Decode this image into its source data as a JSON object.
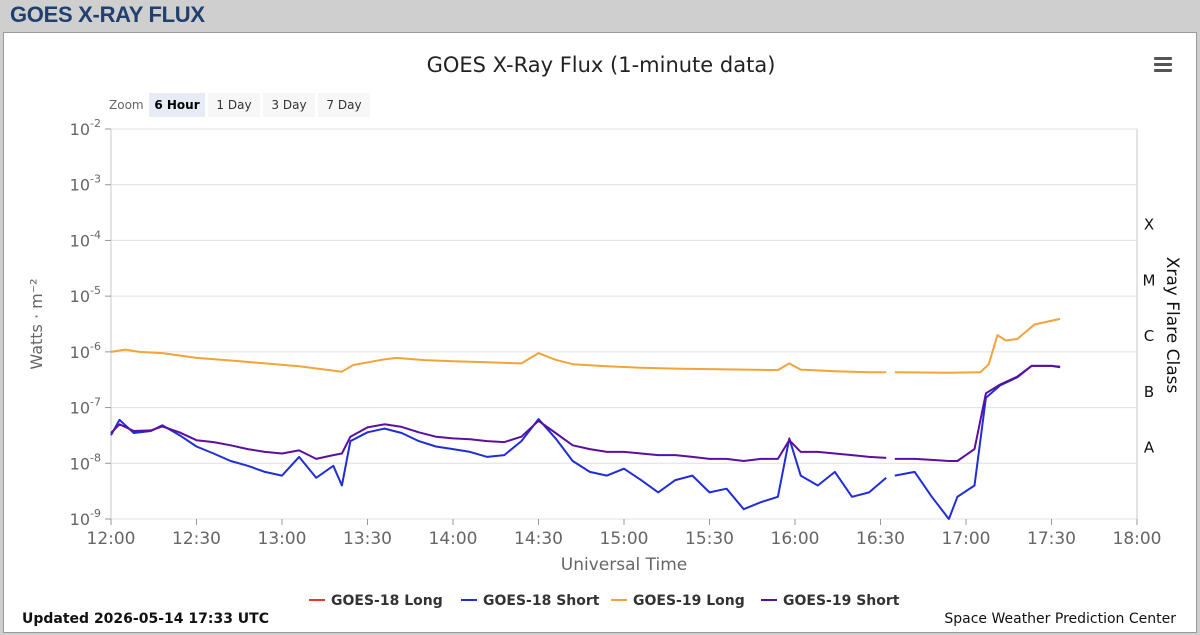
{
  "header": {
    "title": "GOES X-RAY FLUX"
  },
  "toolbar": {
    "zoom_label": "Zoom",
    "zoom_buttons": [
      "6 Hour",
      "1 Day",
      "3 Day",
      "7 Day"
    ],
    "active_zoom": "6 Hour"
  },
  "footer": {
    "updated": "Updated 2026-05-14 17:33 UTC",
    "credit": "Space Weather Prediction Center"
  },
  "colors": {
    "goes18_long": "#ee3524",
    "goes18_short": "#1f2ed6",
    "goes19_long": "#f2a33a",
    "goes19_short": "#5b0fa0"
  },
  "chart_data": {
    "type": "line",
    "title": "GOES X-Ray Flux (1-minute data)",
    "xlabel": "Universal Time",
    "ylabel": "Watts · m⁻²",
    "right_label": "Xray Flare Class",
    "y_scale": "log",
    "ylim": [
      1e-09,
      0.01
    ],
    "x_range_minutes": [
      0,
      360
    ],
    "x_ticks": [
      "12:00",
      "12:30",
      "13:00",
      "13:30",
      "14:00",
      "14:30",
      "15:00",
      "15:30",
      "16:00",
      "16:30",
      "17:00",
      "17:30",
      "18:00"
    ],
    "y_ticks": [
      {
        "mantissa": "10",
        "exp": "-9",
        "value": 1e-09
      },
      {
        "mantissa": "10",
        "exp": "-8",
        "value": 1e-08
      },
      {
        "mantissa": "10",
        "exp": "-7",
        "value": 1e-07
      },
      {
        "mantissa": "10",
        "exp": "-6",
        "value": 1e-06
      },
      {
        "mantissa": "10",
        "exp": "-5",
        "value": 1e-05
      },
      {
        "mantissa": "10",
        "exp": "-4",
        "value": 0.0001
      },
      {
        "mantissa": "10",
        "exp": "-3",
        "value": 0.001
      },
      {
        "mantissa": "10",
        "exp": "-2",
        "value": 0.01
      }
    ],
    "flare_classes": [
      {
        "label": "X",
        "value": 0.0002
      },
      {
        "label": "M",
        "value": 2e-05
      },
      {
        "label": "C",
        "value": 2e-06
      },
      {
        "label": "B",
        "value": 2e-07
      },
      {
        "label": "A",
        "value": 2e-08
      }
    ],
    "grid": true,
    "legend": "bottom",
    "series": [
      {
        "name": "GOES-18 Long",
        "color_key": "goes18_long",
        "points": []
      },
      {
        "name": "GOES-18 Short",
        "color_key": "goes18_short",
        "points": [
          [
            "12:00",
            3.2e-08
          ],
          [
            "12:03",
            6e-08
          ],
          [
            "12:08",
            3.5e-08
          ],
          [
            "12:14",
            3.8e-08
          ],
          [
            "12:18",
            4.8e-08
          ],
          [
            "12:24",
            3.2e-08
          ],
          [
            "12:30",
            2e-08
          ],
          [
            "12:36",
            1.5e-08
          ],
          [
            "12:42",
            1.1e-08
          ],
          [
            "12:48",
            9e-09
          ],
          [
            "12:54",
            7e-09
          ],
          [
            "13:00",
            6e-09
          ],
          [
            "13:06",
            1.3e-08
          ],
          [
            "13:12",
            5.5e-09
          ],
          [
            "13:18",
            9e-09
          ],
          [
            "13:21",
            4e-09
          ],
          [
            "13:24",
            2.5e-08
          ],
          [
            "13:30",
            3.6e-08
          ],
          [
            "13:36",
            4.2e-08
          ],
          [
            "13:42",
            3.5e-08
          ],
          [
            "13:48",
            2.5e-08
          ],
          [
            "13:54",
            2e-08
          ],
          [
            "14:00",
            1.8e-08
          ],
          [
            "14:06",
            1.6e-08
          ],
          [
            "14:12",
            1.3e-08
          ],
          [
            "14:18",
            1.4e-08
          ],
          [
            "14:24",
            2.5e-08
          ],
          [
            "14:30",
            6.2e-08
          ],
          [
            "14:36",
            2.8e-08
          ],
          [
            "14:42",
            1.1e-08
          ],
          [
            "14:48",
            7e-09
          ],
          [
            "14:54",
            6e-09
          ],
          [
            "15:00",
            8e-09
          ],
          [
            "15:06",
            5e-09
          ],
          [
            "15:12",
            3e-09
          ],
          [
            "15:18",
            5e-09
          ],
          [
            "15:24",
            6e-09
          ],
          [
            "15:30",
            3e-09
          ],
          [
            "15:36",
            3.5e-09
          ],
          [
            "15:42",
            1.5e-09
          ],
          [
            "15:48",
            2e-09
          ],
          [
            "15:54",
            2.5e-09
          ],
          [
            "15:58",
            2.8e-08
          ],
          [
            "16:02",
            6e-09
          ],
          [
            "16:08",
            4e-09
          ],
          [
            "16:14",
            7e-09
          ],
          [
            "16:20",
            2.5e-09
          ],
          [
            "16:26",
            3e-09
          ],
          [
            "16:32",
            5.5e-09
          ],
          [
            null,
            null
          ],
          [
            "16:35",
            6e-09
          ],
          [
            "16:42",
            7e-09
          ],
          [
            "16:48",
            2.5e-09
          ],
          [
            "16:54",
            1e-09
          ],
          [
            "16:57",
            2.5e-09
          ],
          [
            "17:03",
            4e-09
          ],
          [
            "17:07",
            1.5e-07
          ],
          [
            "17:12",
            2.5e-07
          ],
          [
            "17:18",
            3.5e-07
          ],
          [
            "17:23",
            5.6e-07
          ],
          [
            "17:30",
            5.6e-07
          ],
          [
            "17:33",
            5.4e-07
          ]
        ]
      },
      {
        "name": "GOES-19 Long",
        "color_key": "goes19_long",
        "points": [
          [
            "12:00",
            1e-06
          ],
          [
            "12:05",
            1.1e-06
          ],
          [
            "12:10",
            1e-06
          ],
          [
            "12:18",
            9.5e-07
          ],
          [
            "12:30",
            7.8e-07
          ],
          [
            "12:42",
            7e-07
          ],
          [
            "12:54",
            6.2e-07
          ],
          [
            "13:06",
            5.5e-07
          ],
          [
            "13:18",
            4.6e-07
          ],
          [
            "13:21",
            4.4e-07
          ],
          [
            "13:25",
            5.8e-07
          ],
          [
            "13:35",
            7.2e-07
          ],
          [
            "13:40",
            7.8e-07
          ],
          [
            "13:50",
            7.1e-07
          ],
          [
            "14:00",
            6.8e-07
          ],
          [
            "14:12",
            6.5e-07
          ],
          [
            "14:24",
            6.2e-07
          ],
          [
            "14:30",
            9.5e-07
          ],
          [
            "14:36",
            7.2e-07
          ],
          [
            "14:42",
            6e-07
          ],
          [
            "14:54",
            5.5e-07
          ],
          [
            "15:06",
            5.2e-07
          ],
          [
            "15:18",
            5e-07
          ],
          [
            "15:30",
            4.9e-07
          ],
          [
            "15:42",
            4.8e-07
          ],
          [
            "15:54",
            4.7e-07
          ],
          [
            "15:58",
            6.2e-07
          ],
          [
            "16:02",
            4.8e-07
          ],
          [
            "16:14",
            4.5e-07
          ],
          [
            "16:26",
            4.3e-07
          ],
          [
            "16:32",
            4.3e-07
          ],
          [
            null,
            null
          ],
          [
            "16:35",
            4.3e-07
          ],
          [
            "16:54",
            4.2e-07
          ],
          [
            "17:05",
            4.3e-07
          ],
          [
            "17:08",
            6e-07
          ],
          [
            "17:11",
            2e-06
          ],
          [
            "17:14",
            1.6e-06
          ],
          [
            "17:18",
            1.7e-06
          ],
          [
            "17:24",
            3.1e-06
          ],
          [
            "17:33",
            3.9e-06
          ]
        ]
      },
      {
        "name": "GOES-19 Short",
        "color_key": "goes19_short",
        "points": [
          [
            "12:00",
            3.5e-08
          ],
          [
            "12:03",
            5e-08
          ],
          [
            "12:08",
            3.8e-08
          ],
          [
            "12:14",
            3.9e-08
          ],
          [
            "12:18",
            4.6e-08
          ],
          [
            "12:24",
            3.6e-08
          ],
          [
            "12:30",
            2.6e-08
          ],
          [
            "12:36",
            2.4e-08
          ],
          [
            "12:42",
            2.1e-08
          ],
          [
            "12:48",
            1.8e-08
          ],
          [
            "12:54",
            1.6e-08
          ],
          [
            "13:00",
            1.5e-08
          ],
          [
            "13:06",
            1.7e-08
          ],
          [
            "13:12",
            1.2e-08
          ],
          [
            "13:18",
            1.4e-08
          ],
          [
            "13:21",
            1.5e-08
          ],
          [
            "13:24",
            3e-08
          ],
          [
            "13:30",
            4.4e-08
          ],
          [
            "13:36",
            5e-08
          ],
          [
            "13:42",
            4.5e-08
          ],
          [
            "13:48",
            3.6e-08
          ],
          [
            "13:54",
            3e-08
          ],
          [
            "14:00",
            2.8e-08
          ],
          [
            "14:06",
            2.7e-08
          ],
          [
            "14:12",
            2.5e-08
          ],
          [
            "14:18",
            2.4e-08
          ],
          [
            "14:24",
            3e-08
          ],
          [
            "14:30",
            5.8e-08
          ],
          [
            "14:36",
            3.5e-08
          ],
          [
            "14:42",
            2.1e-08
          ],
          [
            "14:48",
            1.8e-08
          ],
          [
            "14:54",
            1.6e-08
          ],
          [
            "15:00",
            1.6e-08
          ],
          [
            "15:06",
            1.5e-08
          ],
          [
            "15:12",
            1.4e-08
          ],
          [
            "15:18",
            1.4e-08
          ],
          [
            "15:24",
            1.3e-08
          ],
          [
            "15:30",
            1.2e-08
          ],
          [
            "15:36",
            1.2e-08
          ],
          [
            "15:42",
            1.1e-08
          ],
          [
            "15:48",
            1.2e-08
          ],
          [
            "15:54",
            1.2e-08
          ],
          [
            "15:58",
            2.6e-08
          ],
          [
            "16:02",
            1.6e-08
          ],
          [
            "16:08",
            1.6e-08
          ],
          [
            "16:14",
            1.5e-08
          ],
          [
            "16:20",
            1.4e-08
          ],
          [
            "16:26",
            1.3e-08
          ],
          [
            "16:32",
            1.25e-08
          ],
          [
            null,
            null
          ],
          [
            "16:35",
            1.2e-08
          ],
          [
            "16:42",
            1.2e-08
          ],
          [
            "16:48",
            1.15e-08
          ],
          [
            "16:54",
            1.1e-08
          ],
          [
            "16:57",
            1.1e-08
          ],
          [
            "17:03",
            1.8e-08
          ],
          [
            "17:07",
            1.8e-07
          ],
          [
            "17:12",
            2.6e-07
          ],
          [
            "17:18",
            3.6e-07
          ],
          [
            "17:23",
            5.6e-07
          ],
          [
            "17:30",
            5.6e-07
          ],
          [
            "17:33",
            5.3e-07
          ]
        ]
      }
    ]
  }
}
